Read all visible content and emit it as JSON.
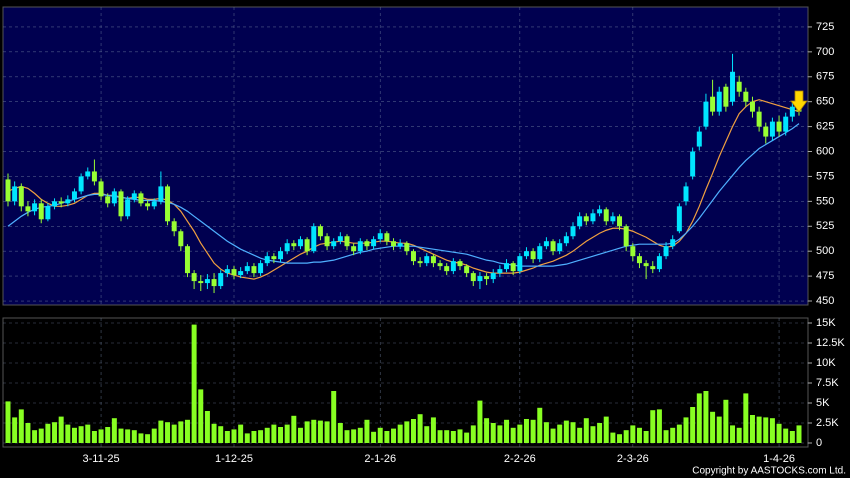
{
  "chart_data": [
    {
      "type": "candlestick",
      "open": [
        572,
        550,
        565,
        545,
        540,
        548,
        532,
        545,
        550,
        548,
        552,
        560,
        575,
        580,
        570,
        555,
        548,
        560,
        535,
        552,
        558,
        548,
        545,
        550,
        565,
        530,
        520,
        505,
        478,
        470,
        468,
        472,
        465,
        478,
        482,
        476,
        480,
        485,
        478,
        488,
        495,
        492,
        500,
        508,
        505,
        512,
        500,
        525,
        515,
        505,
        510,
        515,
        505,
        500,
        510,
        505,
        512,
        518,
        510,
        505,
        508,
        500,
        490,
        488,
        495,
        488,
        485,
        480,
        490,
        485,
        478,
        470,
        475,
        472,
        478,
        482,
        488,
        480,
        495,
        500,
        492,
        505,
        510,
        500,
        508,
        515,
        525,
        535,
        530,
        538,
        542,
        530,
        535,
        525,
        505,
        495,
        488,
        485,
        482,
        495,
        505,
        520,
        550,
        575,
        605,
        625,
        655,
        640,
        665,
        650,
        670,
        660,
        650,
        640,
        625,
        615,
        630,
        620,
        635,
        655
      ],
      "high": [
        578,
        570,
        568,
        550,
        552,
        552,
        548,
        553,
        554,
        556,
        563,
        578,
        584,
        592,
        573,
        558,
        563,
        562,
        555,
        561,
        560,
        551,
        553,
        580,
        567,
        533,
        522,
        507,
        481,
        476,
        477,
        478,
        481,
        486,
        485,
        484,
        489,
        488,
        491,
        499,
        498,
        504,
        512,
        511,
        515,
        514,
        528,
        527,
        518,
        513,
        519,
        517,
        508,
        513,
        512,
        515,
        522,
        520,
        513,
        512,
        510,
        502,
        494,
        498,
        497,
        491,
        488,
        493,
        492,
        487,
        480,
        479,
        478,
        482,
        486,
        492,
        490,
        498,
        504,
        503,
        508,
        514,
        512,
        512,
        519,
        529,
        539,
        538,
        542,
        546,
        544,
        539,
        537,
        527,
        508,
        498,
        491,
        490,
        498,
        509,
        516,
        548,
        569,
        604,
        625,
        658,
        672,
        665,
        668,
        698,
        676,
        664,
        655,
        645,
        629,
        634,
        636,
        639,
        650,
        660
      ],
      "low": [
        545,
        546,
        540,
        535,
        536,
        528,
        530,
        542,
        544,
        545,
        549,
        557,
        572,
        566,
        551,
        544,
        545,
        530,
        532,
        549,
        545,
        541,
        542,
        547,
        526,
        515,
        500,
        474,
        462,
        460,
        462,
        458,
        462,
        474,
        472,
        473,
        477,
        474,
        475,
        485,
        488,
        489,
        497,
        501,
        502,
        496,
        498,
        511,
        501,
        502,
        507,
        501,
        496,
        497,
        501,
        502,
        509,
        506,
        501,
        502,
        496,
        486,
        484,
        485,
        484,
        481,
        476,
        477,
        481,
        474,
        465,
        462,
        466,
        468,
        474,
        479,
        476,
        477,
        492,
        488,
        489,
        502,
        496,
        497,
        505,
        512,
        522,
        526,
        527,
        535,
        526,
        527,
        521,
        500,
        490,
        483,
        472,
        478,
        479,
        492,
        502,
        518,
        546,
        572,
        601,
        622,
        636,
        636,
        640,
        646,
        655,
        645,
        634,
        620,
        608,
        611,
        615,
        616,
        630,
        636
      ],
      "close": [
        550,
        565,
        545,
        540,
        548,
        532,
        545,
        550,
        548,
        552,
        560,
        575,
        580,
        570,
        555,
        548,
        560,
        535,
        552,
        558,
        548,
        545,
        550,
        565,
        530,
        520,
        505,
        478,
        470,
        468,
        472,
        465,
        478,
        482,
        476,
        480,
        485,
        478,
        488,
        495,
        492,
        500,
        508,
        505,
        512,
        500,
        525,
        515,
        505,
        510,
        515,
        505,
        500,
        510,
        505,
        512,
        518,
        510,
        505,
        508,
        500,
        490,
        488,
        495,
        488,
        485,
        480,
        490,
        485,
        478,
        470,
        475,
        472,
        478,
        482,
        488,
        480,
        495,
        500,
        492,
        505,
        510,
        500,
        508,
        515,
        525,
        535,
        530,
        538,
        542,
        530,
        535,
        525,
        505,
        495,
        488,
        485,
        482,
        495,
        505,
        512,
        545,
        565,
        600,
        620,
        650,
        640,
        660,
        645,
        680,
        660,
        650,
        640,
        625,
        615,
        630,
        620,
        635,
        645,
        640
      ],
      "up_color": "#00e5ff",
      "down_color": "#99ff33",
      "series": [
        {
          "color": "#f0a040",
          "values": [
            560,
            563,
            565,
            563,
            558,
            552,
            548,
            545,
            545,
            546,
            548,
            552,
            556,
            558,
            558,
            556,
            556,
            554,
            553,
            554,
            554,
            552,
            552,
            553,
            551,
            547,
            540,
            530,
            520,
            508,
            498,
            488,
            482,
            478,
            476,
            474,
            473,
            472,
            474,
            477,
            481,
            485,
            489,
            493,
            497,
            500,
            504,
            507,
            508,
            509,
            510,
            509,
            508,
            508,
            508,
            509,
            510,
            510,
            509,
            508,
            508,
            506,
            503,
            500,
            497,
            494,
            491,
            489,
            488,
            486,
            483,
            481,
            479,
            478,
            478,
            478,
            478,
            479,
            481,
            483,
            486,
            488,
            490,
            493,
            496,
            500,
            505,
            510,
            514,
            518,
            521,
            523,
            523,
            522,
            520,
            517,
            514,
            510,
            506,
            504,
            505,
            510,
            518,
            530,
            545,
            562,
            578,
            595,
            610,
            625,
            638,
            645,
            650,
            652,
            650,
            648,
            646,
            644,
            642,
            640
          ]
        },
        {
          "color": "#4fb0ff",
          "values": [
            525,
            530,
            535,
            539,
            542,
            544,
            545,
            546,
            548,
            550,
            552,
            554,
            556,
            557,
            557,
            556,
            555,
            554,
            553,
            552,
            551,
            551,
            551,
            550,
            549,
            547,
            544,
            540,
            535,
            530,
            525,
            520,
            515,
            510,
            506,
            502,
            499,
            496,
            493,
            491,
            490,
            489,
            488,
            488,
            488,
            488,
            489,
            489,
            490,
            491,
            493,
            495,
            497,
            499,
            500,
            502,
            503,
            504,
            505,
            505,
            505,
            505,
            504,
            503,
            502,
            501,
            500,
            499,
            498,
            497,
            495,
            493,
            491,
            490,
            488,
            487,
            486,
            485,
            485,
            485,
            485,
            485,
            485,
            486,
            487,
            489,
            491,
            493,
            495,
            497,
            499,
            501,
            503,
            505,
            506,
            507,
            507,
            507,
            507,
            507,
            508,
            512,
            518,
            525,
            533,
            542,
            551,
            560,
            568,
            576,
            584,
            591,
            597,
            603,
            607,
            611,
            615,
            619,
            623,
            628
          ]
        }
      ],
      "ylim": [
        446,
        745
      ],
      "yticks": [
        450,
        475,
        500,
        525,
        550,
        575,
        600,
        625,
        650,
        675,
        700,
        725
      ],
      "grid": true
    },
    {
      "type": "bar",
      "categories": [
        null,
        null,
        null,
        null,
        null,
        null,
        null,
        null,
        null,
        null,
        null,
        null,
        null,
        null,
        "3-11-25",
        null,
        null,
        null,
        null,
        null,
        null,
        null,
        null,
        null,
        null,
        null,
        null,
        null,
        null,
        null,
        null,
        null,
        null,
        null,
        "1-12-25",
        null,
        null,
        null,
        null,
        null,
        null,
        null,
        null,
        null,
        null,
        null,
        null,
        null,
        null,
        null,
        null,
        null,
        null,
        null,
        null,
        null,
        "2-1-26",
        null,
        null,
        null,
        null,
        null,
        null,
        null,
        null,
        null,
        null,
        null,
        null,
        null,
        null,
        null,
        null,
        null,
        null,
        null,
        null,
        "2-2-26",
        null,
        null,
        null,
        null,
        null,
        null,
        null,
        null,
        null,
        null,
        null,
        null,
        null,
        null,
        null,
        null,
        "2-3-26",
        null,
        null,
        null,
        null,
        null,
        null,
        null,
        null,
        null,
        null,
        null,
        null,
        null,
        null,
        null,
        null,
        null,
        null,
        null,
        null,
        null,
        "1-4-26",
        null,
        null,
        null
      ],
      "values": [
        5200,
        3200,
        4200,
        2500,
        1600,
        1800,
        2400,
        2600,
        3300,
        2300,
        1900,
        2100,
        2300,
        1500,
        1700,
        2000,
        3100,
        1800,
        1700,
        1600,
        1200,
        1100,
        1800,
        2800,
        2600,
        2300,
        2700,
        2900,
        14800,
        6700,
        4000,
        2400,
        2100,
        1500,
        1700,
        2300,
        1200,
        1500,
        1600,
        1900,
        2300,
        2000,
        2300,
        3400,
        1900,
        2700,
        2900,
        2800,
        2700,
        6500,
        2500,
        1600,
        1700,
        1900,
        2900,
        1400,
        1900,
        1500,
        1800,
        2300,
        2700,
        3000,
        3600,
        2100,
        3200,
        1600,
        1600,
        1500,
        1700,
        1300,
        2200,
        5300,
        3100,
        2500,
        2200,
        2900,
        1900,
        2300,
        3000,
        2900,
        4400,
        2600,
        1800,
        2300,
        2800,
        2600,
        1900,
        3100,
        2100,
        2500,
        3300,
        1300,
        1100,
        1600,
        2200,
        1900,
        1500,
        4100,
        4200,
        1600,
        1900,
        2300,
        3200,
        4500,
        6200,
        6500,
        3900,
        3300,
        5400,
        2200,
        1900,
        6200,
        3500,
        3300,
        3200,
        3100,
        2400,
        1800,
        1500,
        2200
      ],
      "color": "#88ff22",
      "ylim": [
        -500,
        15625
      ],
      "yticks": [
        0,
        {
          "value": 2500,
          "label": "2.5K"
        },
        {
          "value": 5000,
          "label": "5K"
        },
        {
          "value": 7500,
          "label": "7.5K"
        },
        {
          "value": 10000,
          "label": "10K"
        },
        {
          "value": 12500,
          "label": "12.5K"
        },
        {
          "value": 15000,
          "label": "15K"
        }
      ],
      "grid": true
    }
  ],
  "source": "Copyright by AASTOCKS.com Ltd."
}
